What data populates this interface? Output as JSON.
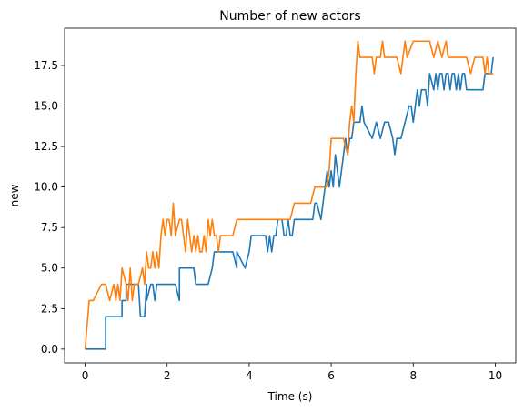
{
  "chart_data": {
    "type": "line",
    "title": "Number of new actors",
    "xlabel": "Time (s)",
    "ylabel": "new",
    "xlim": [
      -0.5,
      10.5
    ],
    "ylim": [
      -0.85,
      19.8
    ],
    "grid": false,
    "legend": "none",
    "x_ticks": [
      0,
      2,
      4,
      6,
      8,
      10
    ],
    "x_tick_labels": [
      "0",
      "2",
      "4",
      "6",
      "8",
      "10"
    ],
    "y_ticks": [
      0,
      2.5,
      5,
      7.5,
      10,
      12.5,
      15,
      17.5
    ],
    "y_tick_labels": [
      "0.0",
      "2.5",
      "5.0",
      "7.5",
      "10.0",
      "12.5",
      "15.0",
      "17.5"
    ],
    "series": [
      {
        "color": "#1f77b4",
        "x": [
          0,
          0.5,
          0.5,
          0.9,
          0.9,
          1.0,
          1.0,
          1.3,
          1.35,
          1.45,
          1.5,
          1.5,
          1.6,
          1.65,
          1.7,
          1.75,
          1.8,
          2.2,
          2.3,
          2.3,
          2.65,
          2.7,
          2.7,
          3.0,
          3.1,
          3.15,
          3.6,
          3.7,
          3.7,
          3.9,
          4.0,
          4.05,
          4.4,
          4.45,
          4.5,
          4.55,
          4.6,
          4.65,
          4.7,
          4.8,
          4.85,
          4.9,
          4.95,
          5.0,
          5.05,
          5.1,
          5.15,
          5.25,
          5.35,
          5.45,
          5.55,
          5.6,
          5.65,
          5.75,
          5.8,
          5.85,
          5.9,
          5.95,
          6.0,
          6.05,
          6.1,
          6.15,
          6.2,
          6.25,
          6.3,
          6.35,
          6.4,
          6.45,
          6.5,
          6.55,
          6.6,
          6.65,
          6.7,
          6.75,
          6.8,
          7.0,
          7.1,
          7.2,
          7.3,
          7.4,
          7.5,
          7.55,
          7.6,
          7.7,
          7.8,
          7.9,
          7.95,
          8.0,
          8.05,
          8.1,
          8.15,
          8.2,
          8.3,
          8.35,
          8.4,
          8.5,
          8.55,
          8.6,
          8.65,
          8.7,
          8.75,
          8.8,
          8.85,
          8.9,
          8.95,
          9.0,
          9.05,
          9.1,
          9.15,
          9.2,
          9.25,
          9.3,
          9.35,
          9.4,
          9.5,
          9.6,
          9.7,
          9.75,
          9.8,
          9.85,
          9.9,
          9.95
        ],
        "y": [
          0,
          0,
          2,
          2,
          3,
          3,
          4,
          4,
          2,
          2,
          4,
          3,
          4,
          4,
          3,
          4,
          4,
          4,
          3,
          5,
          5,
          4,
          4,
          4,
          5,
          6,
          6,
          5,
          6,
          5,
          6,
          7,
          7,
          6,
          7,
          6,
          7,
          7,
          8,
          8,
          7,
          7,
          8,
          7,
          7,
          8,
          8,
          8,
          8,
          8,
          8,
          9,
          9,
          8,
          9,
          10,
          11,
          10,
          11,
          10,
          12,
          11,
          10,
          11,
          12,
          13,
          12,
          13,
          13,
          14,
          14,
          14,
          14,
          15,
          14,
          13,
          14,
          13,
          14,
          14,
          13,
          12,
          13,
          13,
          14,
          15,
          15,
          14,
          15,
          16,
          15,
          16,
          16,
          15,
          17,
          16,
          17,
          16,
          17,
          17,
          16,
          17,
          17,
          16,
          17,
          17,
          16,
          17,
          16,
          17,
          17,
          16,
          16,
          16,
          16,
          16,
          16,
          17,
          17,
          17,
          17,
          18
        ]
      },
      {
        "color": "#ff7f0e",
        "x": [
          0,
          0.1,
          0.2,
          0.4,
          0.45,
          0.5,
          0.6,
          0.7,
          0.75,
          0.8,
          0.85,
          0.9,
          1.0,
          1.05,
          1.1,
          1.15,
          1.2,
          1.3,
          1.4,
          1.45,
          1.5,
          1.55,
          1.6,
          1.65,
          1.7,
          1.75,
          1.8,
          1.85,
          1.9,
          1.95,
          2.0,
          2.05,
          2.1,
          2.15,
          2.2,
          2.3,
          2.35,
          2.4,
          2.45,
          2.5,
          2.55,
          2.6,
          2.65,
          2.7,
          2.75,
          2.8,
          2.85,
          2.9,
          2.95,
          3.0,
          3.05,
          3.1,
          3.15,
          3.2,
          3.25,
          3.3,
          3.4,
          3.5,
          3.6,
          3.7,
          5.0,
          5.1,
          5.5,
          5.6,
          5.9,
          5.95,
          6.0,
          6.05,
          6.1,
          6.3,
          6.4,
          6.45,
          6.5,
          6.55,
          6.6,
          6.65,
          6.7,
          6.8,
          7.0,
          7.05,
          7.1,
          7.2,
          7.25,
          7.3,
          7.4,
          7.5,
          7.6,
          7.7,
          7.75,
          7.8,
          7.85,
          8.0,
          8.4,
          8.5,
          8.6,
          8.7,
          8.8,
          8.85,
          8.9,
          9.0,
          9.1,
          9.2,
          9.3,
          9.4,
          9.5,
          9.6,
          9.7,
          9.75,
          9.8,
          9.85,
          9.9,
          9.95
        ],
        "y": [
          0,
          3,
          3,
          4,
          4,
          4,
          3,
          4,
          3,
          4,
          3,
          5,
          4,
          3,
          5,
          3,
          4,
          4,
          5,
          4,
          6,
          5,
          5,
          6,
          5,
          6,
          5,
          7,
          8,
          7,
          8,
          8,
          7,
          9,
          7,
          8,
          8,
          7,
          6,
          8,
          7,
          6,
          7,
          6,
          7,
          6,
          6,
          7,
          6,
          8,
          7,
          8,
          7,
          7,
          6,
          7,
          7,
          7,
          7,
          8,
          8,
          9,
          9,
          10,
          10,
          11,
          13,
          13,
          13,
          13,
          12,
          14,
          15,
          14,
          17,
          19,
          18,
          18,
          18,
          17,
          18,
          18,
          19,
          18,
          18,
          18,
          18,
          17,
          18,
          19,
          18,
          19,
          19,
          18,
          19,
          18,
          19,
          18,
          18,
          18,
          18,
          18,
          18,
          17,
          18,
          18,
          18,
          17,
          18,
          17,
          17,
          17
        ]
      }
    ]
  }
}
